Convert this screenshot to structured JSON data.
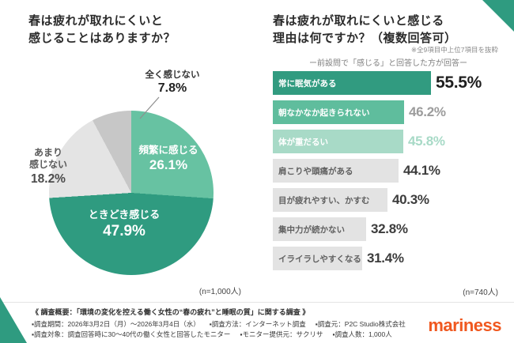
{
  "page": {
    "background": "#ffffff",
    "accent_teal": "#2f9b80",
    "logo_color": "#f0581f"
  },
  "left_section": {
    "title_lines": [
      "春は疲れが取れにくいと",
      "感じることはありますか？"
    ],
    "n_label": "(n=1,000人)"
  },
  "right_section": {
    "title_lines": [
      "春は疲れが取れにくいと感じる",
      "理由は何ですか？（複数回答可）"
    ],
    "note_small": "※全9項目中上位7項目を抜粋",
    "note_sub": "ー前設問で「感じる」と回答した方が回答ー",
    "n_label": "(n=740人)"
  },
  "footer": {
    "overview": "《 調査概要：「環境の変化を控える働く女性の“春の疲れ”と睡眠の質」に関する調査 》",
    "row1": [
      "▪調査期間：2026年3月2日（月）〜2026年3月4日（水）",
      "▪調査方法：インターネット調査",
      "▪調査元：P2C Studio株式会社"
    ],
    "row2": [
      "▪調査対象：調査回答時に30〜40代の働く女性と回答したモニター",
      "▪モニター提供元：サクリサ",
      "▪調査人数：1,000人"
    ],
    "logo": "mariness"
  },
  "chart_data": [
    {
      "type": "pie",
      "title": "春は疲れが取れにくいと感じることはありますか？",
      "labels": [
        "頻繁に感じる",
        "ときどき感じる",
        "あまり感じない",
        "全く感じない"
      ],
      "labels_display": [
        "頻繁に感じる",
        "ときどき感じる",
        "あまり\n感じない",
        "全く感じない"
      ],
      "values": [
        26.1,
        47.9,
        18.2,
        7.8
      ],
      "pct_labels": [
        "26.1%",
        "47.9%",
        "18.2%",
        "7.8%"
      ],
      "colors": [
        "#67c2a2",
        "#2f9b80",
        "#e4e4e4",
        "#c7c7c7"
      ],
      "start_angle_deg": 0,
      "direction": "clockwise",
      "n": "(n=1,000人)"
    },
    {
      "type": "bar",
      "orientation": "horizontal",
      "title": "春は疲れが取れにくいと感じる理由は何ですか？（複数回答可）",
      "categories": [
        "常に眠気がある",
        "朝なかなか起きられない",
        "体が重だるい",
        "肩こりや頭痛がある",
        "目が疲れやすい、かすむ",
        "集中力が続かない",
        "イライラしやすくなる"
      ],
      "values": [
        55.5,
        46.2,
        45.8,
        44.1,
        40.3,
        32.8,
        31.4
      ],
      "pct_labels": [
        "55.5%",
        "46.2%",
        "45.8%",
        "44.1%",
        "40.3%",
        "32.8%",
        "31.4%"
      ],
      "colors": [
        "#319b80",
        "#5fbd9d",
        "#a8dac7",
        "#e3e3e3",
        "#e3e3e3",
        "#e3e3e3",
        "#e3e3e3"
      ],
      "label_colors": [
        "#ffffff",
        "#ffffff",
        "#ffffff",
        "#616161",
        "#616161",
        "#616161",
        "#616161"
      ],
      "value_colors": [
        "#1f1f1f",
        "#9c9c9c",
        "#a8dac7",
        "#3c3c3c",
        "#3c3c3c",
        "#3c3c3c",
        "#3c3c3c"
      ],
      "xlim": [
        0,
        60
      ],
      "n": "(n=740人)"
    }
  ]
}
